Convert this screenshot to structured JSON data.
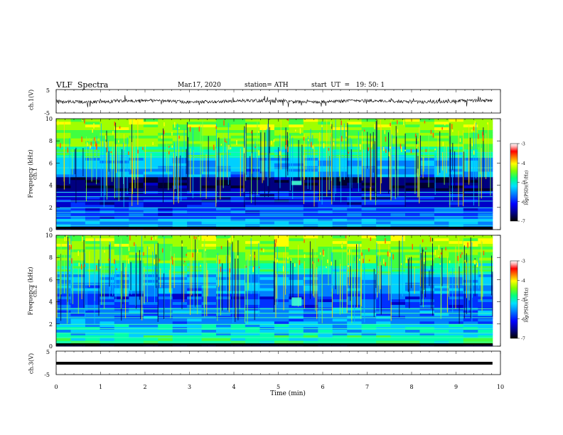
{
  "header": {
    "title": "VLF  Spectra",
    "date": "Mar.17, 2020",
    "station": "station= ATH",
    "start": "start  UT  =   19: 50: 1"
  },
  "colors": {
    "spectrogram_scale": [
      "#000000",
      "#000060",
      "#0000c0",
      "#0040ff",
      "#00a0ff",
      "#00e0ff",
      "#00ff80",
      "#80ff00",
      "#ffff00",
      "#ff8000",
      "#ff0000",
      "#ffc0c0",
      "#ffffff"
    ]
  },
  "chart_data": [
    {
      "type": "line",
      "id": "ch1-waveform",
      "ylabel": "ch.1(V)",
      "ylim": [
        -5,
        5
      ],
      "yticks": [
        "5",
        "-5"
      ],
      "xlim": [
        0,
        10
      ],
      "description_values": {
        "mean": 0.0,
        "amplitude_approx": 1.2
      }
    },
    {
      "type": "heatmap",
      "id": "ch1-spectrogram",
      "ylabel_top": "ch.1",
      "ylabel": "Frequency  (kHz)",
      "ylim": [
        0,
        10
      ],
      "yticks": [
        "0",
        "2",
        "4",
        "6",
        "8",
        "10"
      ],
      "xlim": [
        0,
        9.8
      ],
      "colorbar": {
        "label": "log(PSD)(V²/Hz)",
        "range": [
          -7,
          -3
        ],
        "ticks": [
          "-3",
          "-4",
          "-5",
          "-6",
          "-7"
        ]
      }
    },
    {
      "type": "heatmap",
      "id": "ch2-spectrogram",
      "ylabel_top": "ch.2",
      "ylabel": "Frequency  (kHz)",
      "ylim": [
        0,
        10
      ],
      "yticks": [
        "0",
        "2",
        "4",
        "6",
        "8",
        "10"
      ],
      "xlim": [
        0,
        9.8
      ],
      "colorbar": {
        "label": "log(PSD)(V²/Hz)",
        "range": [
          -7,
          -3
        ],
        "ticks": [
          "-3",
          "-4",
          "-5",
          "-6",
          "-7"
        ]
      }
    },
    {
      "type": "line",
      "id": "ch3-waveform",
      "ylabel": "ch.3(V)",
      "ylim": [
        -5,
        5
      ],
      "yticks": [
        "5",
        "-5"
      ],
      "xlim": [
        0,
        10
      ],
      "description_values": {
        "level": 0.0
      }
    }
  ],
  "xaxis": {
    "label": "Time  (min)",
    "range": [
      0,
      10
    ],
    "ticks": [
      "0",
      "1",
      "2",
      "3",
      "4",
      "5",
      "6",
      "7",
      "8",
      "9",
      "10"
    ]
  }
}
